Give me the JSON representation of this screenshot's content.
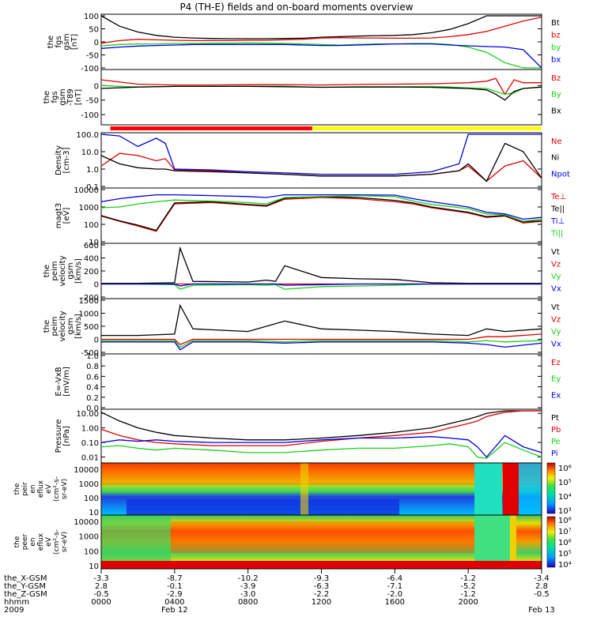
{
  "title": "P4 (TH-E) fields and on-board moments overview",
  "colors": {
    "black": "#000000",
    "red": "#e00000",
    "green": "#18d018",
    "blue": "#0000e0",
    "yellow": "#ffff00",
    "bar_red": "#ff0000"
  },
  "chart_data": [
    {
      "type": "line",
      "panel": "fgs",
      "ylabel": [
        "the",
        "fgs",
        "gsm",
        "[nT]"
      ],
      "ylim": [
        -100,
        100
      ],
      "ticks": [
        "100",
        "50",
        "0",
        "-50",
        "-100"
      ],
      "legend": [
        {
          "name": "Bt",
          "color": "black"
        },
        {
          "name": "bz",
          "color": "red"
        },
        {
          "name": "by",
          "color": "green"
        },
        {
          "name": "bx",
          "color": "blue"
        }
      ],
      "x_hours": [
        0,
        1,
        2,
        3,
        4,
        5,
        6,
        7,
        8,
        9,
        10,
        11,
        12,
        13,
        14,
        15,
        16,
        17,
        18,
        19,
        20,
        21,
        22,
        23,
        24
      ],
      "series": [
        {
          "name": "Bt",
          "values": [
            100,
            60,
            38,
            25,
            18,
            15,
            13,
            12,
            12,
            12,
            13,
            14,
            18,
            20,
            22,
            24,
            25,
            28,
            35,
            48,
            70,
            100,
            100,
            100,
            100
          ]
        },
        {
          "name": "bz",
          "values": [
            -5,
            5,
            10,
            8,
            6,
            5,
            5,
            5,
            6,
            6,
            8,
            10,
            15,
            16,
            15,
            15,
            14,
            14,
            15,
            20,
            28,
            40,
            60,
            80,
            95
          ]
        },
        {
          "name": "by",
          "values": [
            -15,
            -10,
            -8,
            -8,
            -6,
            -6,
            -5,
            -5,
            -4,
            -5,
            -6,
            -8,
            -10,
            -12,
            -10,
            -8,
            -8,
            -6,
            -6,
            -10,
            -20,
            -40,
            -80,
            -100,
            -100
          ]
        },
        {
          "name": "bx",
          "values": [
            -25,
            -20,
            -16,
            -14,
            -12,
            -10,
            -10,
            -10,
            -10,
            -10,
            -10,
            -12,
            -14,
            -14,
            -12,
            -10,
            -8,
            -8,
            -8,
            -12,
            -15,
            -18,
            -20,
            -30,
            -100
          ]
        }
      ]
    },
    {
      "type": "line",
      "panel": "fgs_dsl",
      "ylabel": [
        "the",
        "fgs",
        "gsm",
        "-T89",
        "[nT]"
      ],
      "ylim": [
        -130,
        50
      ],
      "ticks": [
        "0",
        "-50",
        "-100"
      ],
      "legend": [
        {
          "name": "Bz",
          "color": "red"
        },
        {
          "name": "By",
          "color": "green"
        },
        {
          "name": "Bx",
          "color": "black"
        }
      ],
      "x_hours": [
        0,
        2,
        4,
        6,
        8,
        10,
        12,
        14,
        16,
        18,
        19,
        20,
        21,
        21.5,
        22,
        22.5,
        23,
        24
      ],
      "series": [
        {
          "name": "Bz",
          "values": [
            20,
            5,
            2,
            2,
            3,
            3,
            2,
            4,
            5,
            6,
            8,
            10,
            15,
            25,
            -30,
            20,
            10,
            10
          ]
        },
        {
          "name": "By",
          "values": [
            0,
            -5,
            -3,
            -3,
            -2,
            -2,
            -6,
            -4,
            -4,
            -3,
            -5,
            -8,
            -10,
            -20,
            -30,
            -25,
            -10,
            -5
          ]
        },
        {
          "name": "Bx",
          "values": [
            -10,
            -5,
            -3,
            -3,
            -3,
            -4,
            -6,
            -5,
            -5,
            -6,
            -8,
            -10,
            -15,
            -30,
            -50,
            -20,
            -10,
            -5
          ]
        }
      ]
    },
    {
      "type": "bar",
      "panel": "mode_bar",
      "segments": [
        {
          "from": 0.5,
          "to": 11.5,
          "color": "bar_red"
        },
        {
          "from": 11.5,
          "to": 24,
          "color": "yellow"
        }
      ]
    },
    {
      "type": "line",
      "panel": "density",
      "log": true,
      "ylabel": [
        "Density",
        "[cm-3]"
      ],
      "ylim": [
        0.1,
        100
      ],
      "ticks": [
        "100.0",
        "10.0",
        "1.0",
        "0.1"
      ],
      "legend": [
        {
          "name": "Ne",
          "color": "red"
        },
        {
          "name": "Ni",
          "color": "black"
        },
        {
          "name": "Npot",
          "color": "blue"
        }
      ],
      "x_hours": [
        0,
        1,
        2,
        3,
        3.5,
        4,
        6,
        8,
        10,
        12,
        14,
        16,
        18,
        19.5,
        20,
        21,
        22,
        23,
        24
      ],
      "series": [
        {
          "name": "Ne",
          "values": [
            1.5,
            8,
            6,
            3,
            4,
            0.9,
            0.8,
            0.6,
            0.5,
            0.4,
            0.4,
            0.4,
            0.5,
            0.8,
            1.5,
            0.2,
            1.5,
            3,
            0.3
          ]
        },
        {
          "name": "Ni",
          "values": [
            6,
            2,
            1.2,
            1,
            1,
            0.8,
            0.7,
            0.6,
            0.5,
            0.4,
            0.4,
            0.4,
            0.5,
            0.8,
            2,
            0.2,
            30,
            10,
            0.3
          ]
        },
        {
          "name": "Npot",
          "values": [
            100,
            80,
            20,
            60,
            30,
            1,
            0.9,
            0.7,
            0.6,
            0.5,
            0.5,
            0.5,
            0.7,
            2,
            100,
            100,
            100,
            100,
            100
          ]
        }
      ]
    },
    {
      "type": "line",
      "panel": "temperature",
      "log": true,
      "ylabel": [
        "magt3",
        "[eV]"
      ],
      "ylim": [
        10,
        10000
      ],
      "ticks": [
        "10000",
        "1000",
        "100",
        "10"
      ],
      "legend": [
        {
          "name": "Te⊥",
          "color": "red"
        },
        {
          "name": "Te||",
          "color": "black"
        },
        {
          "name": "Ti⊥",
          "color": "blue"
        },
        {
          "name": "Ti||",
          "color": "green"
        }
      ],
      "x_hours": [
        0,
        1,
        2,
        3,
        4,
        6,
        8,
        9,
        10,
        12,
        14,
        16,
        17,
        18,
        20,
        21,
        22,
        23,
        24
      ],
      "series": [
        {
          "name": "Te⊥",
          "values": [
            300,
            150,
            80,
            40,
            1500,
            1800,
            1300,
            1100,
            2800,
            3500,
            3000,
            2000,
            1500,
            900,
            450,
            250,
            300,
            120,
            150
          ]
        },
        {
          "name": "Te||",
          "values": [
            320,
            160,
            90,
            45,
            1700,
            2000,
            1400,
            1200,
            3200,
            4000,
            3500,
            2400,
            1700,
            1000,
            500,
            280,
            320,
            140,
            160
          ]
        },
        {
          "name": "Ti⊥",
          "values": [
            2000,
            3000,
            4000,
            5000,
            5000,
            4500,
            4000,
            3500,
            5000,
            5000,
            5000,
            4800,
            3000,
            2000,
            1000,
            500,
            400,
            200,
            250
          ]
        },
        {
          "name": "Ti||",
          "values": [
            900,
            1000,
            1500,
            2000,
            2500,
            2200,
            1800,
            1500,
            3500,
            4000,
            4500,
            4000,
            2200,
            1400,
            800,
            400,
            350,
            150,
            200
          ]
        }
      ]
    },
    {
      "type": "line",
      "panel": "velocity_perp",
      "ylabel": [
        "the",
        "peim",
        "velocity",
        "gsm",
        "[km/s]"
      ],
      "ylim": [
        -200,
        600
      ],
      "ticks": [
        "600",
        "400",
        "200",
        "0",
        "-200"
      ],
      "legend": [
        {
          "name": "Vt",
          "color": "black"
        },
        {
          "name": "Vz",
          "color": "red"
        },
        {
          "name": "Vy",
          "color": "green"
        },
        {
          "name": "Vx",
          "color": "blue"
        }
      ],
      "x_hours": [
        0,
        2,
        4,
        4.3,
        5,
        8,
        9,
        9.5,
        10,
        12,
        14,
        16,
        18,
        20,
        22,
        24
      ],
      "series": [
        {
          "name": "Vt",
          "values": [
            10,
            10,
            20,
            550,
            40,
            30,
            60,
            40,
            280,
            100,
            80,
            70,
            20,
            10,
            10,
            10
          ]
        },
        {
          "name": "Vz",
          "values": [
            0,
            0,
            0,
            0,
            0,
            0,
            0,
            0,
            0,
            0,
            0,
            0,
            0,
            0,
            0,
            0
          ]
        },
        {
          "name": "Vy",
          "values": [
            0,
            0,
            -10,
            -80,
            -20,
            -10,
            -20,
            -10,
            -80,
            -40,
            -30,
            -20,
            0,
            0,
            0,
            0
          ]
        },
        {
          "name": "Vx",
          "values": [
            0,
            0,
            0,
            -30,
            0,
            0,
            0,
            0,
            -20,
            -10,
            0,
            0,
            0,
            0,
            0,
            0
          ]
        }
      ]
    },
    {
      "type": "line",
      "panel": "velocity",
      "ylabel": [
        "the",
        "peim",
        "velocity",
        "gsm",
        "[km/s]"
      ],
      "ylim": [
        -500,
        1500
      ],
      "ticks": [
        "1500",
        "1000",
        "500",
        "0",
        "-500"
      ],
      "legend": [
        {
          "name": "Vt",
          "color": "black"
        },
        {
          "name": "Vz",
          "color": "red"
        },
        {
          "name": "Vy",
          "color": "green"
        },
        {
          "name": "Vx",
          "color": "blue"
        }
      ],
      "x_hours": [
        0,
        2,
        4,
        4.3,
        5,
        8,
        10,
        12,
        14,
        16,
        18,
        20,
        21,
        22,
        24
      ],
      "series": [
        {
          "name": "Vt",
          "values": [
            150,
            150,
            200,
            1300,
            400,
            300,
            700,
            400,
            350,
            300,
            200,
            150,
            400,
            300,
            400
          ]
        },
        {
          "name": "Vz",
          "values": [
            0,
            0,
            0,
            -200,
            0,
            0,
            0,
            0,
            0,
            0,
            0,
            0,
            100,
            100,
            200
          ]
        },
        {
          "name": "Vy",
          "values": [
            -50,
            -50,
            -50,
            -300,
            -50,
            -50,
            -100,
            -50,
            -50,
            -50,
            -50,
            -100,
            -50,
            -100,
            -50
          ]
        },
        {
          "name": "Vx",
          "values": [
            -100,
            -100,
            -100,
            -400,
            -100,
            -100,
            -150,
            -100,
            -100,
            -100,
            -100,
            -150,
            -200,
            -300,
            -150
          ]
        }
      ]
    },
    {
      "type": "line",
      "panel": "efield",
      "ylabel": [
        "E=-VxB",
        "[mV/m]"
      ],
      "ylim": [
        0,
        1
      ],
      "ticks": [
        "1.0",
        "0.8",
        "0.6",
        "0.4",
        "0.2",
        "0.0"
      ],
      "legend": [
        {
          "name": "Ez",
          "color": "red"
        },
        {
          "name": "Ey",
          "color": "green"
        },
        {
          "name": "Ex",
          "color": "blue"
        }
      ],
      "series": []
    },
    {
      "type": "line",
      "panel": "pressure",
      "log": true,
      "ylabel": [
        "Pressure",
        "[nPa]"
      ],
      "ylim": [
        0.005,
        15
      ],
      "ticks": [
        "10.00",
        "1.00",
        "0.10",
        "0.01"
      ],
      "legend": [
        {
          "name": "Pt",
          "color": "black"
        },
        {
          "name": "Pb",
          "color": "red"
        },
        {
          "name": "Pe",
          "color": "green"
        },
        {
          "name": "Pi",
          "color": "blue"
        }
      ],
      "x_hours": [
        0,
        1,
        2,
        3,
        4,
        6,
        8,
        10,
        12,
        14,
        16,
        18,
        19,
        20,
        20.5,
        21,
        22,
        23,
        24
      ],
      "series": [
        {
          "name": "Pt",
          "values": [
            12,
            3,
            1,
            0.5,
            0.3,
            0.2,
            0.15,
            0.15,
            0.2,
            0.3,
            0.5,
            1,
            2,
            4,
            6,
            10,
            15,
            15,
            15
          ]
        },
        {
          "name": "Pb",
          "values": [
            0.8,
            0.3,
            0.15,
            0.1,
            0.08,
            0.06,
            0.06,
            0.06,
            0.12,
            0.2,
            0.3,
            0.5,
            1,
            2,
            3,
            6,
            12,
            15,
            15
          ]
        },
        {
          "name": "Pe",
          "values": [
            0.05,
            0.06,
            0.04,
            0.03,
            0.04,
            0.03,
            0.02,
            0.02,
            0.03,
            0.04,
            0.04,
            0.06,
            0.08,
            0.05,
            0.01,
            0.008,
            0.1,
            0.03,
            0.01
          ]
        },
        {
          "name": "Pi",
          "values": [
            0.1,
            0.15,
            0.12,
            0.15,
            0.12,
            0.1,
            0.1,
            0.1,
            0.15,
            0.2,
            0.2,
            0.25,
            0.2,
            0.15,
            0.05,
            0.01,
            0.3,
            0.05,
            0.02
          ]
        }
      ]
    },
    {
      "type": "heatmap",
      "panel": "ion_spectrogram",
      "ylabel": [
        "the",
        "peir",
        "en",
        "eflux",
        "eV",
        "(cm²-s-",
        "sr-eV)"
      ],
      "ytick_labels": [
        "10000",
        "1000",
        "100",
        "10"
      ],
      "colorbar_labels": [
        "10⁶",
        "10⁵",
        "10⁴",
        "10³"
      ]
    },
    {
      "type": "heatmap",
      "panel": "electron_spectrogram",
      "ylabel": [
        "the",
        "peer",
        "en",
        "eflux",
        "eV",
        "(cm²-s-",
        "sr-eV)"
      ],
      "ytick_labels": [
        "10000",
        "1000",
        "100",
        "10"
      ],
      "colorbar_labels": [
        "10⁸",
        "10⁷",
        "10⁶",
        "10⁵",
        "10⁴"
      ]
    }
  ],
  "xaxis": {
    "row_labels": [
      "the_X-GSM",
      "the_Y-GSM",
      "the_Z-GSM",
      "hhmm",
      "2009"
    ],
    "columns": [
      {
        "hour": 0,
        "vals": [
          "-3.3",
          "2.8",
          "-0.5",
          "0000",
          ""
        ]
      },
      {
        "hour": 4,
        "vals": [
          "-8.7",
          "-0.1",
          "-2.9",
          "0400",
          "Feb 12"
        ]
      },
      {
        "hour": 8,
        "vals": [
          "-10.2",
          "-3.9",
          "-3.0",
          "0800",
          ""
        ]
      },
      {
        "hour": 12,
        "vals": [
          "-9.3",
          "-6.3",
          "-2.2",
          "1200",
          ""
        ]
      },
      {
        "hour": 16,
        "vals": [
          "-6.4",
          "-7.1",
          "-2.0",
          "1600",
          ""
        ]
      },
      {
        "hour": 20,
        "vals": [
          "-1.2",
          "-5.2",
          "-1.2",
          "2000",
          ""
        ]
      },
      {
        "hour": 24,
        "vals": [
          "-3.4",
          "2.8",
          "-0.5",
          "",
          "Feb 13"
        ]
      }
    ]
  }
}
